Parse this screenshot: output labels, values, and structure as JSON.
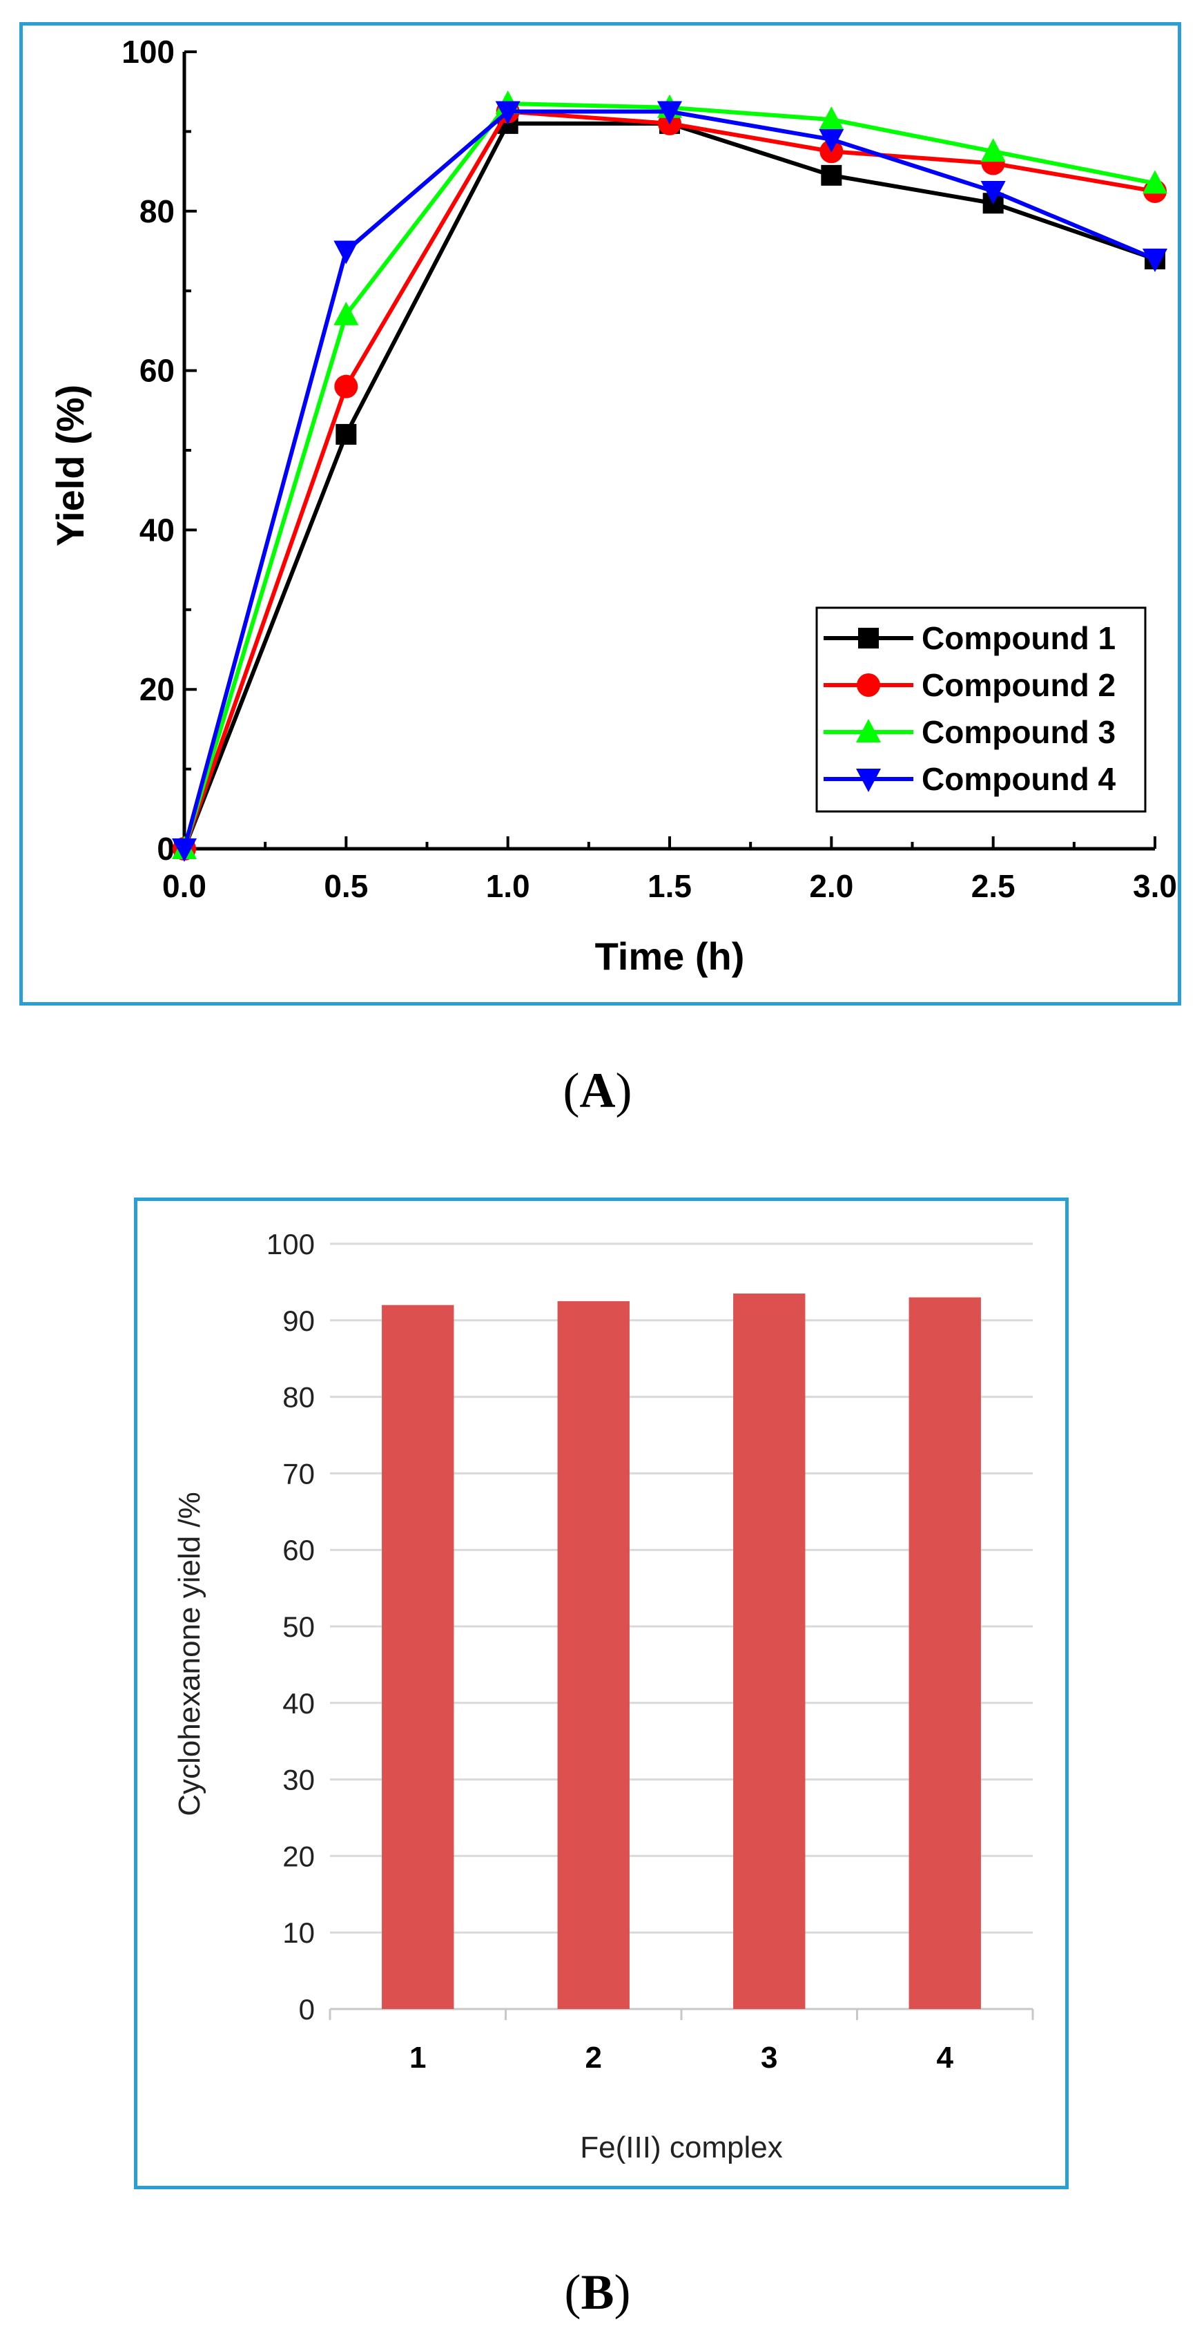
{
  "chart_data": [
    {
      "type": "line",
      "panel_label": "A",
      "xlabel": "Time (h)",
      "ylabel": "Yield (%)",
      "xlim": [
        0,
        3.0
      ],
      "ylim": [
        0,
        100
      ],
      "x": [
        0.0,
        0.5,
        1.0,
        1.5,
        2.0,
        2.5,
        3.0
      ],
      "x_tick_labels": [
        "0.0",
        "0.5",
        "1.0",
        "1.5",
        "2.0",
        "2.5",
        "3.0"
      ],
      "y_tick_labels": [
        "0",
        "20",
        "40",
        "60",
        "80",
        "100"
      ],
      "y_ticks": [
        0,
        20,
        40,
        60,
        80,
        100
      ],
      "legend_position": "bottom-right",
      "series": [
        {
          "name": "Compound 1",
          "color": "#000000",
          "marker": "square",
          "values": [
            0,
            52,
            91,
            91,
            84.5,
            81,
            74
          ]
        },
        {
          "name": "Compound 2",
          "color": "#ff0000",
          "marker": "circle",
          "values": [
            0,
            58,
            92.5,
            91,
            87.5,
            86,
            82.5
          ]
        },
        {
          "name": "Compound 3",
          "color": "#00ff00",
          "marker": "triangle-up",
          "values": [
            0,
            67,
            93.5,
            93,
            91.5,
            87.5,
            83.5
          ]
        },
        {
          "name": "Compound 4",
          "color": "#0000ff",
          "marker": "triangle-down",
          "values": [
            0,
            75,
            92.5,
            92.5,
            89,
            82.5,
            74
          ]
        }
      ]
    },
    {
      "type": "bar",
      "panel_label": "B",
      "xlabel": "Fe(III) complex",
      "ylabel": "Cyclohexanone yield /%",
      "ylim": [
        0,
        100
      ],
      "y_ticks": [
        0,
        10,
        20,
        30,
        40,
        50,
        60,
        70,
        80,
        90,
        100
      ],
      "y_tick_labels": [
        "0",
        "10",
        "20",
        "30",
        "40",
        "50",
        "60",
        "70",
        "80",
        "90",
        "100"
      ],
      "grid": true,
      "categories": [
        "1",
        "2",
        "3",
        "4"
      ],
      "values": [
        92,
        92.5,
        93.5,
        93
      ],
      "color": "#dc5050"
    }
  ],
  "captions": {
    "a": "A",
    "b": "B"
  },
  "colors": {
    "frame": "#2a9fd6"
  }
}
